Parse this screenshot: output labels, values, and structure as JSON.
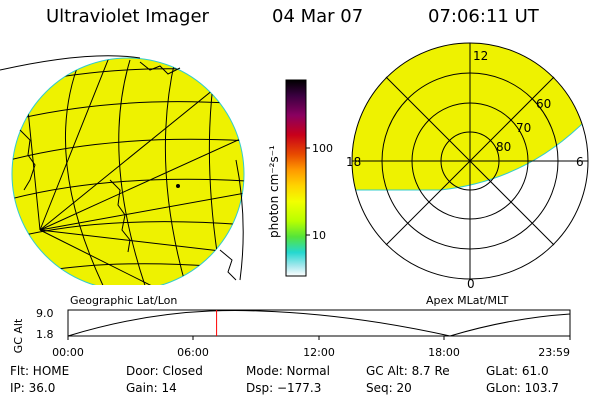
{
  "header": {
    "title": "Ultraviolet Imager",
    "date": "04 Mar 07",
    "time": "07:06:11 UT"
  },
  "colorbar": {
    "unit_label": "photon cm⁻²s⁻¹",
    "tick_labels": [
      "100",
      "10"
    ],
    "colors": [
      "#000000",
      "#3a0040",
      "#8a0060",
      "#c8001a",
      "#e84b00",
      "#ff9a00",
      "#ffd400",
      "#f2ff00",
      "#b8ff00",
      "#55e43a",
      "#24d8d0",
      "#a8e8ee",
      "#ffffff"
    ]
  },
  "panels": {
    "left_caption": "Geographic Lat/Lon",
    "right_caption": "Apex MLat/MLT",
    "polar": {
      "mlt_labels": [
        "12",
        "18",
        "6",
        "0"
      ],
      "mlat_labels": [
        "60",
        "70",
        "80"
      ]
    },
    "fill_color": "#eef200"
  },
  "timeline": {
    "axis_label": "GC Alt",
    "ytick_labels": [
      "9.0",
      "1.8"
    ],
    "xtick_labels": [
      "00:00",
      "06:00",
      "12:00",
      "18:00",
      "23:59"
    ],
    "marker_fraction": 0.296,
    "marker_color": "#ff0000"
  },
  "info": {
    "row1": [
      "Flt: HOME",
      "Door: Closed",
      "Mode: Normal",
      "GC Alt: 8.7 Re",
      "GLat: 61.0"
    ],
    "row2": [
      "IP: 36.0",
      "Gain: 14",
      "Dsp: −177.3",
      "Seq: 20",
      "GLon: 103.7"
    ]
  }
}
